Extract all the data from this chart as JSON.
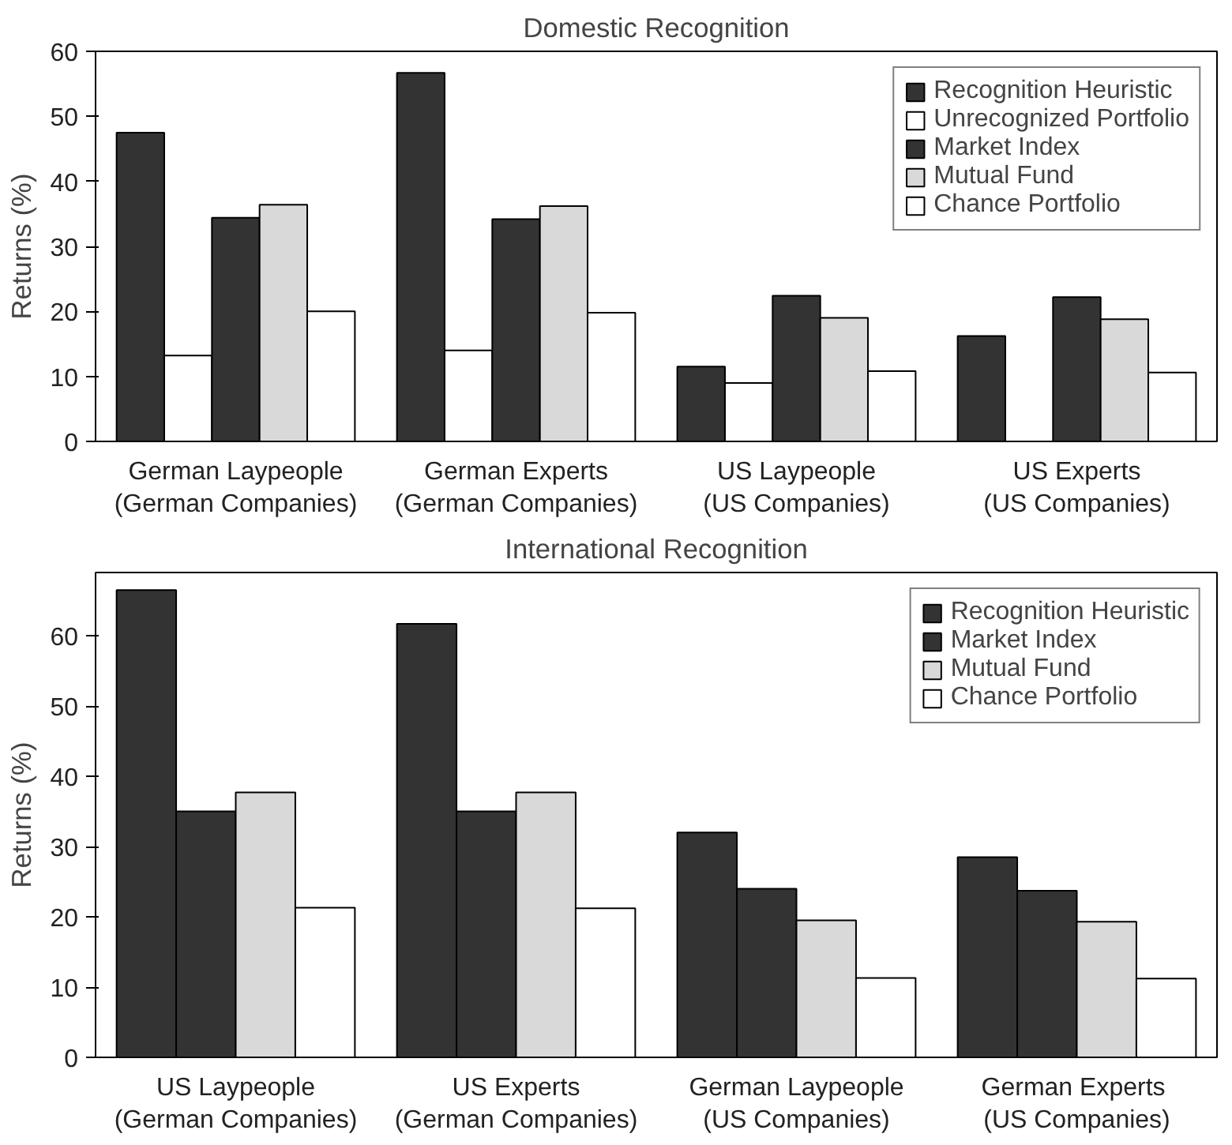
{
  "chart_data": [
    {
      "type": "bar",
      "title": "Domestic Recognition",
      "ylabel": "Returns (%)",
      "categories": [
        "German Laypeople\n(German Companies)",
        "German Experts\n(German Companies)",
        "US Laypeople\n(US Companies)",
        "US Experts\n(US Companies)"
      ],
      "ylim": [
        0,
        60
      ],
      "yticks": [
        0,
        10,
        20,
        30,
        40,
        50,
        60
      ],
      "grid": false,
      "legend": "top right",
      "series": [
        {
          "name": "Recognition Heuristic",
          "color": "#333333",
          "values": [
            47.5,
            56.7,
            11.5,
            16.2
          ]
        },
        {
          "name": "Unrecognized Portfolio",
          "color": "#ffffff",
          "values": [
            13.2,
            14,
            9,
            null
          ]
        },
        {
          "name": "Market Index",
          "color": "#333333",
          "values": [
            34.4,
            34.2,
            22.4,
            22.2
          ]
        },
        {
          "name": "Mutual Fund",
          "color": "#d9d9d9",
          "values": [
            36.4,
            36.2,
            19,
            18.8
          ]
        },
        {
          "name": "Chance Portfolio",
          "color": "#ffffff",
          "values": [
            20,
            19.8,
            10.8,
            10.6
          ]
        }
      ]
    },
    {
      "type": "bar",
      "title": "International Recognition",
      "ylabel": "Returns (%)",
      "categories": [
        "US Laypeople\n(German Companies)",
        "US Experts\n(German Companies)",
        "German Laypeople\n(US Companies)",
        "German  Experts\n(US Companies)"
      ],
      "ylim": [
        0,
        69
      ],
      "yticks": [
        0,
        10,
        20,
        30,
        40,
        50,
        60
      ],
      "grid": false,
      "legend": "top right",
      "series": [
        {
          "name": "Recognition Heuristic",
          "color": "#333333",
          "values": [
            66.5,
            61.7,
            32,
            28.5
          ]
        },
        {
          "name": "Market Index",
          "color": "#333333",
          "values": [
            35,
            35,
            24,
            23.7
          ]
        },
        {
          "name": "Mutual Fund",
          "color": "#d9d9d9",
          "values": [
            37.7,
            37.7,
            19.5,
            19.3
          ]
        },
        {
          "name": "Chance Portfolio",
          "color": "#ffffff",
          "values": [
            21.3,
            21.2,
            11.3,
            11.2
          ]
        }
      ]
    }
  ]
}
